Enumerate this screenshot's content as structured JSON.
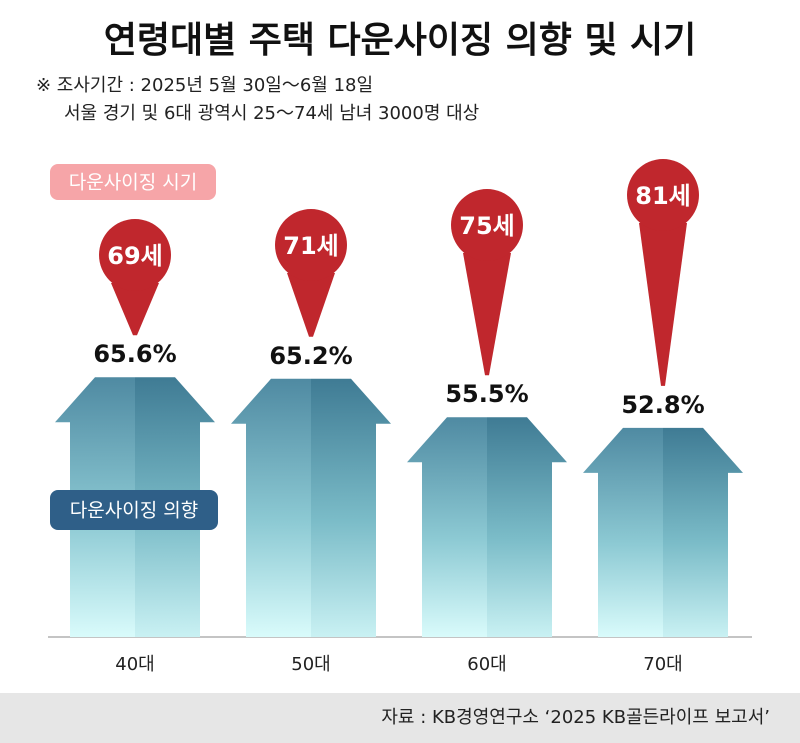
{
  "chart_data": {
    "type": "bar",
    "title": "연령대별 주택 다운사이징 의향 및 시기",
    "notes": [
      "※ 조사기간 : 2025년 5월 30일～6월 18일",
      "서울 경기 및 6대 광역시 25～74세 남녀 3000명 대상"
    ],
    "categories": [
      "40대",
      "50대",
      "60대",
      "70대"
    ],
    "series": [
      {
        "name": "다운사이징 의향",
        "color": "#2f5f88",
        "values": [
          65.6,
          65.2,
          55.5,
          52.8
        ],
        "value_labels": [
          "65.6%",
          "65.2%",
          "55.5%",
          "52.8%"
        ]
      },
      {
        "name": "다운사이징 시기",
        "color": "#c0272d",
        "values": [
          69,
          71,
          75,
          81
        ],
        "value_labels": [
          "69세",
          "71세",
          "75세",
          "81세"
        ]
      }
    ],
    "source": "자료 : KB경영연구소 ‘2025 KB골든라이프 보고서’"
  }
}
